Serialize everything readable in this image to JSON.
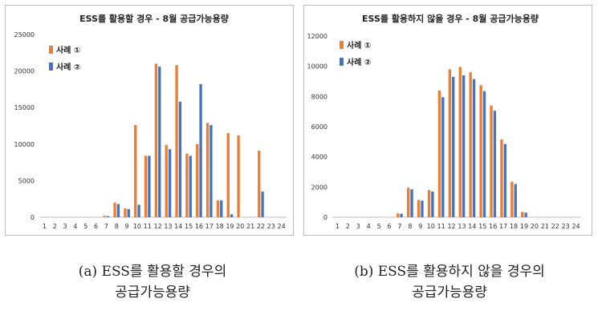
{
  "captions": {
    "a": {
      "line1": "(a) ESS를 활용할 경우의",
      "line2": "공급가능용량"
    },
    "b": {
      "line1": "(b) ESS를 활용하지 않을 경우의",
      "line2": "공급가능용량"
    }
  },
  "colors": {
    "series1": "#ED7D31",
    "series2": "#4472C4"
  },
  "chart_data": [
    {
      "type": "bar",
      "title": "ESS를 활용할 경우 - 8월 공급가능용량",
      "categories": [
        "1",
        "2",
        "3",
        "4",
        "5",
        "6",
        "7",
        "8",
        "9",
        "10",
        "11",
        "12",
        "13",
        "14",
        "15",
        "16",
        "17",
        "18",
        "19",
        "20",
        "21",
        "22",
        "23",
        "24"
      ],
      "ylim": [
        0,
        25000
      ],
      "yticks": [
        0,
        5000,
        10000,
        15000,
        20000,
        25000
      ],
      "grid": false,
      "legend": "top-left",
      "series": [
        {
          "name": "사례 ①",
          "values": [
            0,
            0,
            0,
            0,
            0,
            0,
            200,
            2000,
            1200,
            12600,
            8400,
            21000,
            9900,
            20800,
            8700,
            10000,
            12900,
            2300,
            11500,
            11200,
            0,
            9100,
            0,
            0
          ]
        },
        {
          "name": "사례 ②",
          "values": [
            0,
            0,
            0,
            0,
            0,
            0,
            150,
            1800,
            1100,
            1700,
            8400,
            20600,
            9300,
            15800,
            8400,
            18200,
            12600,
            2300,
            400,
            0,
            0,
            3500,
            0,
            0
          ]
        }
      ]
    },
    {
      "type": "bar",
      "title": "ESS를 활용하지 않을 경우 - 8월 공급가능용량",
      "categories": [
        "1",
        "2",
        "3",
        "4",
        "5",
        "6",
        "7",
        "8",
        "9",
        "10",
        "11",
        "12",
        "13",
        "14",
        "15",
        "16",
        "17",
        "18",
        "19",
        "20",
        "21",
        "22",
        "23",
        "24"
      ],
      "ylim": [
        0,
        12000
      ],
      "yticks": [
        0,
        2000,
        4000,
        6000,
        8000,
        10000,
        12000
      ],
      "grid": false,
      "legend": "top-left",
      "series": [
        {
          "name": "사례 ①",
          "values": [
            0,
            0,
            0,
            0,
            0,
            0,
            250,
            1950,
            1150,
            1800,
            8400,
            9800,
            9950,
            9600,
            8750,
            7400,
            5150,
            2350,
            350,
            0,
            0,
            0,
            0,
            0
          ]
        },
        {
          "name": "사례 ②",
          "values": [
            0,
            0,
            0,
            0,
            0,
            0,
            230,
            1850,
            1100,
            1700,
            7950,
            9300,
            9400,
            9150,
            8350,
            7050,
            4850,
            2200,
            300,
            0,
            0,
            0,
            0,
            0
          ]
        }
      ]
    }
  ]
}
